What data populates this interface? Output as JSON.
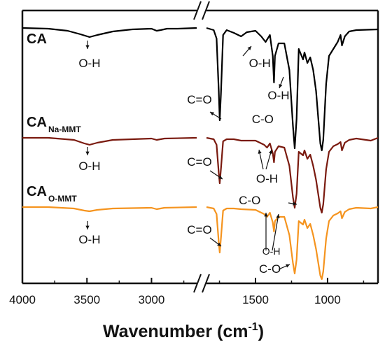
{
  "chart_data": {
    "type": "line",
    "xlabel": "Wavenumber (cm",
    "xlabel_sup": "-1",
    "x_broken_axis": true,
    "x_reversed": true,
    "x_segments": [
      [
        4000,
        2650
      ],
      [
        1840,
        650
      ]
    ],
    "x_ticks": [
      {
        "value": 4000,
        "label": "4000"
      },
      {
        "value": 3500,
        "label": "3500"
      },
      {
        "value": 3000,
        "label": "3000"
      },
      {
        "value": 1500,
        "label": "1500"
      },
      {
        "value": 1000,
        "label": "1000"
      }
    ],
    "y_ticks_shown": false,
    "series": [
      {
        "name": "CA",
        "sub": "",
        "color": "#000000",
        "baseline": 40,
        "points": [
          [
            4000,
            0
          ],
          [
            3800,
            -1
          ],
          [
            3650,
            -4
          ],
          [
            3550,
            -9
          ],
          [
            3480,
            -13
          ],
          [
            3420,
            -10
          ],
          [
            3300,
            -5
          ],
          [
            3150,
            -2
          ],
          [
            3000,
            -1
          ],
          [
            2960,
            -4
          ],
          [
            2930,
            -3
          ],
          [
            2880,
            -1
          ],
          [
            2800,
            -1
          ],
          [
            2650,
            0
          ],
          [
            1840,
            0
          ],
          [
            1790,
            -3
          ],
          [
            1770,
            -15
          ],
          [
            1755,
            -90
          ],
          [
            1748,
            -132
          ],
          [
            1740,
            -95
          ],
          [
            1725,
            -10
          ],
          [
            1700,
            -3
          ],
          [
            1650,
            -7
          ],
          [
            1600,
            -12
          ],
          [
            1560,
            -6
          ],
          [
            1500,
            -4
          ],
          [
            1460,
            -12
          ],
          [
            1430,
            -20
          ],
          [
            1400,
            -10
          ],
          [
            1380,
            -40
          ],
          [
            1372,
            -78
          ],
          [
            1365,
            -40
          ],
          [
            1340,
            -22
          ],
          [
            1300,
            -22
          ],
          [
            1265,
            -60
          ],
          [
            1240,
            -140
          ],
          [
            1228,
            -172
          ],
          [
            1215,
            -130
          ],
          [
            1200,
            -30
          ],
          [
            1170,
            -45
          ],
          [
            1160,
            -35
          ],
          [
            1140,
            -50
          ],
          [
            1120,
            -42
          ],
          [
            1100,
            -60
          ],
          [
            1080,
            -90
          ],
          [
            1050,
            -165
          ],
          [
            1040,
            -175
          ],
          [
            1030,
            -160
          ],
          [
            1010,
            -80
          ],
          [
            990,
            -40
          ],
          [
            960,
            -30
          ],
          [
            930,
            -20
          ],
          [
            910,
            -10
          ],
          [
            900,
            -25
          ],
          [
            880,
            -12
          ],
          [
            850,
            -5
          ],
          [
            800,
            -3
          ],
          [
            650,
            -2
          ]
        ]
      },
      {
        "name": "CA",
        "sub": "Na-MMT",
        "color": "#7a1a0f",
        "baseline": 197,
        "points": [
          [
            4000,
            0
          ],
          [
            3800,
            0
          ],
          [
            3600,
            -3
          ],
          [
            3520,
            -8
          ],
          [
            3480,
            -10
          ],
          [
            3420,
            -7
          ],
          [
            3300,
            -3
          ],
          [
            3000,
            -1
          ],
          [
            2960,
            -3
          ],
          [
            2900,
            -1
          ],
          [
            2650,
            0
          ],
          [
            1840,
            0
          ],
          [
            1790,
            -2
          ],
          [
            1770,
            -10
          ],
          [
            1755,
            -50
          ],
          [
            1748,
            -65
          ],
          [
            1740,
            -45
          ],
          [
            1725,
            -5
          ],
          [
            1700,
            -2
          ],
          [
            1650,
            -2
          ],
          [
            1600,
            -4
          ],
          [
            1500,
            -4
          ],
          [
            1440,
            -10
          ],
          [
            1420,
            -14
          ],
          [
            1400,
            -8
          ],
          [
            1380,
            -22
          ],
          [
            1372,
            -35
          ],
          [
            1365,
            -20
          ],
          [
            1340,
            -12
          ],
          [
            1300,
            -14
          ],
          [
            1265,
            -40
          ],
          [
            1240,
            -85
          ],
          [
            1228,
            -100
          ],
          [
            1215,
            -80
          ],
          [
            1200,
            -20
          ],
          [
            1170,
            -25
          ],
          [
            1160,
            -18
          ],
          [
            1140,
            -30
          ],
          [
            1120,
            -24
          ],
          [
            1100,
            -40
          ],
          [
            1080,
            -60
          ],
          [
            1050,
            -100
          ],
          [
            1040,
            -107
          ],
          [
            1030,
            -95
          ],
          [
            1010,
            -45
          ],
          [
            990,
            -20
          ],
          [
            960,
            -12
          ],
          [
            930,
            -9
          ],
          [
            910,
            -6
          ],
          [
            900,
            -18
          ],
          [
            880,
            -7
          ],
          [
            850,
            -3
          ],
          [
            800,
            -1
          ],
          [
            700,
            -4
          ],
          [
            650,
            0
          ]
        ]
      },
      {
        "name": "CA",
        "sub": "O-MMT",
        "color": "#f5941f",
        "baseline": 296,
        "points": [
          [
            4000,
            0
          ],
          [
            3800,
            0
          ],
          [
            3600,
            -2
          ],
          [
            3520,
            -5
          ],
          [
            3480,
            -6
          ],
          [
            3420,
            -4
          ],
          [
            3300,
            -2
          ],
          [
            3000,
            -1
          ],
          [
            2960,
            -3
          ],
          [
            2900,
            -1
          ],
          [
            2650,
            0
          ],
          [
            1840,
            0
          ],
          [
            1790,
            -2
          ],
          [
            1770,
            -10
          ],
          [
            1755,
            -50
          ],
          [
            1748,
            -65
          ],
          [
            1740,
            -45
          ],
          [
            1725,
            -5
          ],
          [
            1700,
            -2
          ],
          [
            1650,
            -2
          ],
          [
            1600,
            -3
          ],
          [
            1500,
            -4
          ],
          [
            1440,
            -10
          ],
          [
            1420,
            -14
          ],
          [
            1400,
            -8
          ],
          [
            1380,
            -22
          ],
          [
            1372,
            -35
          ],
          [
            1365,
            -20
          ],
          [
            1340,
            -14
          ],
          [
            1300,
            -14
          ],
          [
            1265,
            -40
          ],
          [
            1240,
            -80
          ],
          [
            1228,
            -95
          ],
          [
            1215,
            -75
          ],
          [
            1200,
            -20
          ],
          [
            1170,
            -25
          ],
          [
            1160,
            -18
          ],
          [
            1140,
            -30
          ],
          [
            1120,
            -24
          ],
          [
            1100,
            -40
          ],
          [
            1080,
            -60
          ],
          [
            1050,
            -98
          ],
          [
            1040,
            -103
          ],
          [
            1030,
            -92
          ],
          [
            1010,
            -45
          ],
          [
            990,
            -20
          ],
          [
            960,
            -12
          ],
          [
            930,
            -9
          ],
          [
            910,
            -6
          ],
          [
            900,
            -16
          ],
          [
            880,
            -7
          ],
          [
            850,
            -3
          ],
          [
            800,
            -1
          ],
          [
            700,
            -2
          ],
          [
            650,
            0
          ]
        ]
      }
    ],
    "annotations": {
      "ca": [
        {
          "text": "O-H",
          "x": 3480,
          "y_off": 56
        },
        {
          "text": "O-H",
          "x": 1470,
          "y_off": 56
        },
        {
          "text": "O-H",
          "x": 1340,
          "y_off": 102
        },
        {
          "text": "C=O",
          "x": 1890,
          "y_off": 108
        },
        {
          "text": "C-O",
          "x": 1450,
          "y_off": 136
        }
      ],
      "na": [
        {
          "text": "O-H",
          "x": 3480,
          "y_off": 46
        },
        {
          "text": "C=O",
          "x": 1900,
          "y_off": 40
        },
        {
          "text": "O-H",
          "x": 1420,
          "y_off": 64
        }
      ],
      "o": [
        {
          "text": "O-H",
          "x": 3480,
          "y_off": 52
        },
        {
          "text": "C=O",
          "x": 1900,
          "y_off": 38
        },
        {
          "text": "C-O",
          "x": 1540,
          "y_off": -4
        },
        {
          "text": "O-H",
          "x": 1390,
          "y_off": 68
        },
        {
          "text": "C-O",
          "x": 1400,
          "y_off": 94
        }
      ]
    }
  }
}
